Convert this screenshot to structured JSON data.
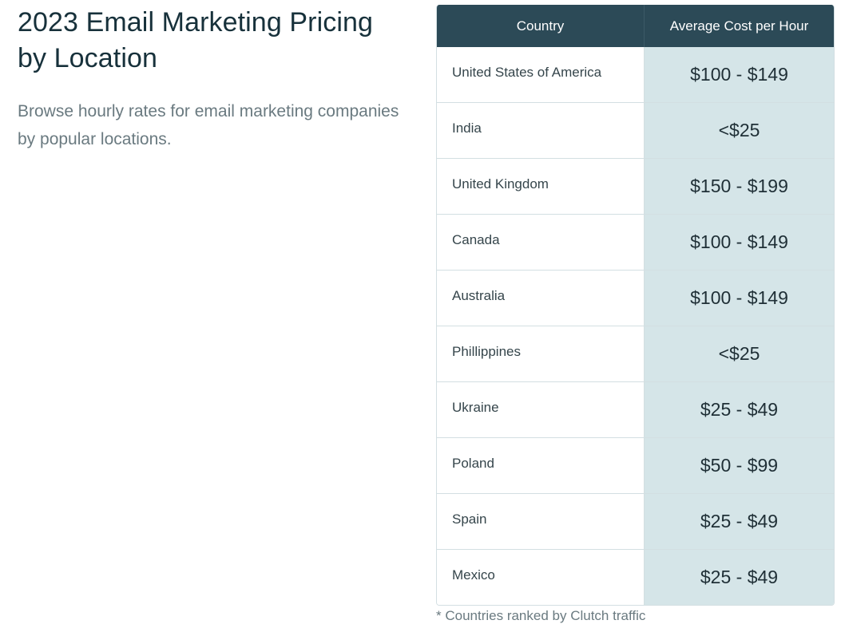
{
  "intro": {
    "title": "2023 Email Marketing Pricing by Location",
    "description": "Browse hourly rates for email marketing companies by popular locations."
  },
  "table": {
    "headers": {
      "country": "Country",
      "cost": "Average Cost per Hour"
    },
    "rows": [
      {
        "country": "United States of America",
        "cost": "$100 - $149"
      },
      {
        "country": "India",
        "cost": "<$25"
      },
      {
        "country": "United Kingdom",
        "cost": "$150 - $199"
      },
      {
        "country": "Canada",
        "cost": "$100 - $149"
      },
      {
        "country": "Australia",
        "cost": "$100 - $149"
      },
      {
        "country": "Phillippines",
        "cost": "<$25"
      },
      {
        "country": "Ukraine",
        "cost": "$25 - $49"
      },
      {
        "country": "Poland",
        "cost": "$50 - $99"
      },
      {
        "country": "Spain",
        "cost": "$25 - $49"
      },
      {
        "country": "Mexico",
        "cost": "$25 - $49"
      }
    ],
    "footnote": "* Countries ranked by Clutch traffic"
  },
  "colors": {
    "header_bg": "#2c4a57",
    "cost_column_bg": "#d5e5e8",
    "title_text": "#17313b",
    "muted_text": "#6a7a80"
  }
}
